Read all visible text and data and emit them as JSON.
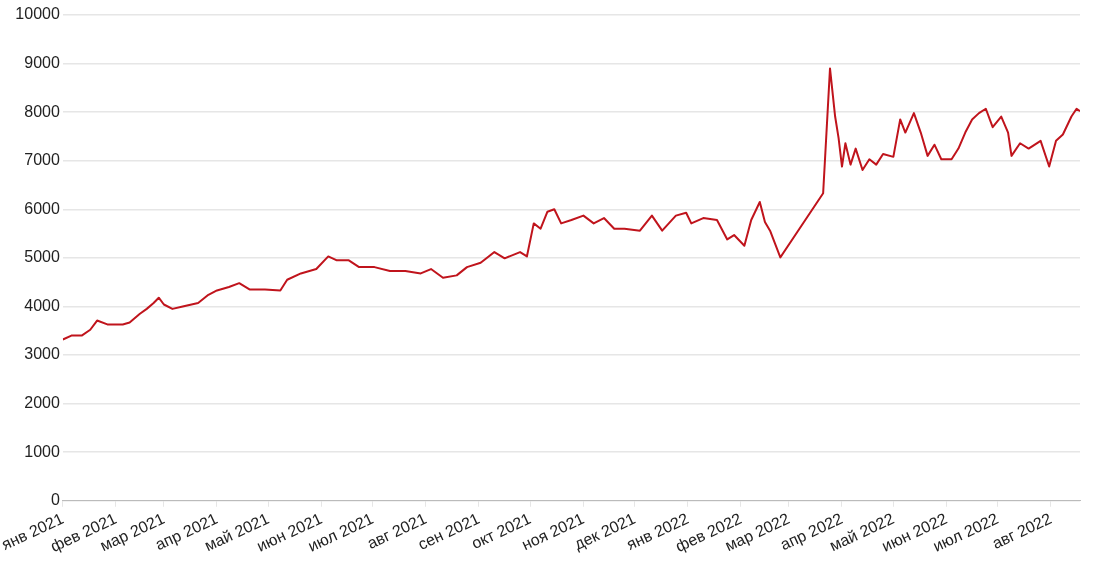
{
  "chart_data": {
    "type": "line",
    "grid": "y",
    "marker": "none",
    "line_style": "solid",
    "ylim": [
      0,
      10000
    ],
    "yticks": [
      0,
      1000,
      2000,
      3000,
      4000,
      5000,
      6000,
      7000,
      8000,
      9000,
      10000
    ],
    "xlim": [
      "2021-01-01",
      "2022-08-18"
    ],
    "xticks": [
      {
        "value": "2021-01-01",
        "label": "янв 2021"
      },
      {
        "value": "2021-02-01",
        "label": "фев 2021"
      },
      {
        "value": "2021-03-01",
        "label": "мар 2021"
      },
      {
        "value": "2021-04-01",
        "label": "апр 2021"
      },
      {
        "value": "2021-05-01",
        "label": "май 2021"
      },
      {
        "value": "2021-06-01",
        "label": "июн 2021"
      },
      {
        "value": "2021-07-01",
        "label": "июл 2021"
      },
      {
        "value": "2021-08-01",
        "label": "авг 2021"
      },
      {
        "value": "2021-09-01",
        "label": "сен 2021"
      },
      {
        "value": "2021-10-01",
        "label": "окт 2021"
      },
      {
        "value": "2021-11-01",
        "label": "ноя 2021"
      },
      {
        "value": "2021-12-01",
        "label": "дек 2021"
      },
      {
        "value": "2022-01-01",
        "label": "янв 2022"
      },
      {
        "value": "2022-02-01",
        "label": "фев 2022"
      },
      {
        "value": "2022-03-01",
        "label": "мар 2022"
      },
      {
        "value": "2022-04-01",
        "label": "апр 2022"
      },
      {
        "value": "2022-05-01",
        "label": "май 2022"
      },
      {
        "value": "2022-06-01",
        "label": "июн 2022"
      },
      {
        "value": "2022-07-01",
        "label": "июл 2022"
      },
      {
        "value": "2022-08-01",
        "label": "авг 2022"
      }
    ],
    "series": [
      {
        "color": "#c0141c",
        "x": [
          "2021-01-01",
          "2021-01-06",
          "2021-01-12",
          "2021-01-17",
          "2021-01-21",
          "2021-01-27",
          "2021-02-05",
          "2021-02-09",
          "2021-02-15",
          "2021-02-19",
          "2021-02-23",
          "2021-02-26",
          "2021-03-01",
          "2021-03-06",
          "2021-03-12",
          "2021-03-21",
          "2021-03-27",
          "2021-04-01",
          "2021-04-08",
          "2021-04-14",
          "2021-04-20",
          "2021-04-29",
          "2021-05-08",
          "2021-05-12",
          "2021-05-20",
          "2021-05-29",
          "2021-06-05",
          "2021-06-10",
          "2021-06-17",
          "2021-06-23",
          "2021-07-02",
          "2021-07-11",
          "2021-07-20",
          "2021-07-29",
          "2021-08-04",
          "2021-08-11",
          "2021-08-19",
          "2021-08-25",
          "2021-09-02",
          "2021-09-10",
          "2021-09-16",
          "2021-09-25",
          "2021-09-29",
          "2021-10-03",
          "2021-10-07",
          "2021-10-11",
          "2021-10-15",
          "2021-10-19",
          "2021-10-25",
          "2021-11-01",
          "2021-11-07",
          "2021-11-13",
          "2021-11-19",
          "2021-11-25",
          "2021-12-04",
          "2021-12-11",
          "2021-12-17",
          "2021-12-25",
          "2021-12-31",
          "2022-01-03",
          "2022-01-10",
          "2022-01-18",
          "2022-01-24",
          "2022-01-28",
          "2022-02-03",
          "2022-02-07",
          "2022-02-12",
          "2022-02-15",
          "2022-02-18",
          "2022-02-24",
          "2022-03-21",
          "2022-03-25",
          "2022-03-28",
          "2022-03-30",
          "2022-04-01",
          "2022-04-03",
          "2022-04-06",
          "2022-04-09",
          "2022-04-13",
          "2022-04-17",
          "2022-04-21",
          "2022-04-25",
          "2022-05-01",
          "2022-05-05",
          "2022-05-08",
          "2022-05-13",
          "2022-05-17",
          "2022-05-21",
          "2022-05-25",
          "2022-05-29",
          "2022-06-04",
          "2022-06-08",
          "2022-06-12",
          "2022-06-16",
          "2022-06-20",
          "2022-06-24",
          "2022-06-28",
          "2022-07-03",
          "2022-07-07",
          "2022-07-09",
          "2022-07-14",
          "2022-07-19",
          "2022-07-26",
          "2022-07-31",
          "2022-08-04",
          "2022-08-08",
          "2022-08-13",
          "2022-08-16",
          "2022-08-18"
        ],
        "values": [
          3320,
          3400,
          3400,
          3520,
          3710,
          3630,
          3630,
          3670,
          3850,
          3950,
          4070,
          4180,
          4040,
          3950,
          4000,
          4070,
          4240,
          4330,
          4400,
          4480,
          4350,
          4350,
          4330,
          4550,
          4680,
          4770,
          5030,
          4950,
          4950,
          4810,
          4810,
          4730,
          4730,
          4680,
          4770,
          4590,
          4640,
          4810,
          4900,
          5120,
          4990,
          5120,
          5030,
          5710,
          5600,
          5950,
          6000,
          5710,
          5780,
          5870,
          5710,
          5820,
          5600,
          5600,
          5560,
          5870,
          5560,
          5870,
          5930,
          5710,
          5820,
          5780,
          5380,
          5470,
          5250,
          5780,
          6150,
          5740,
          5560,
          5010,
          6330,
          8900,
          7910,
          7470,
          6880,
          7360,
          6920,
          7250,
          6810,
          7030,
          6920,
          7140,
          7080,
          7850,
          7580,
          7980,
          7580,
          7100,
          7330,
          7030,
          7030,
          7250,
          7580,
          7850,
          7980,
          8070,
          7690,
          7910,
          7580,
          7100,
          7360,
          7250,
          7410,
          6880,
          7410,
          7540,
          7910,
          8070,
          8020
        ]
      }
    ]
  }
}
